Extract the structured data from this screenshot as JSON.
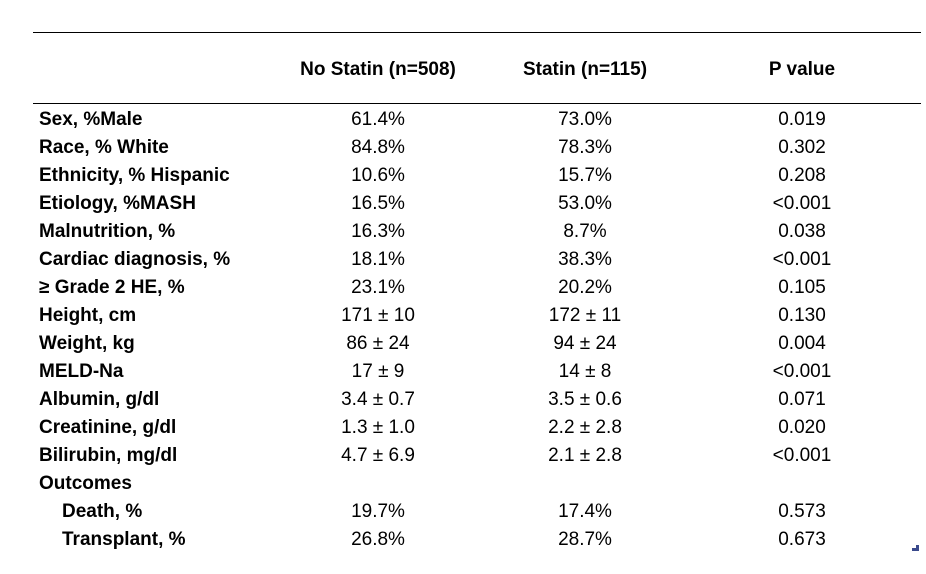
{
  "table": {
    "headers": [
      "No Statin (n=508)",
      "Statin (n=115)",
      "P value"
    ],
    "rows": [
      {
        "label": "Sex, %Male",
        "c1": "61.4%",
        "c2": "73.0%",
        "c3": "0.019"
      },
      {
        "label": "Race, % White",
        "c1": "84.8%",
        "c2": "78.3%",
        "c3": "0.302"
      },
      {
        "label": "Ethnicity, % Hispanic",
        "c1": "10.6%",
        "c2": "15.7%",
        "c3": "0.208"
      },
      {
        "label": "Etiology, %MASH",
        "c1": "16.5%",
        "c2": "53.0%",
        "c3": "<0.001"
      },
      {
        "label": "Malnutrition, %",
        "c1": "16.3%",
        "c2": "8.7%",
        "c3": "0.038"
      },
      {
        "label": "Cardiac diagnosis, %",
        "c1": "18.1%",
        "c2": "38.3%",
        "c3": "<0.001"
      },
      {
        "label": "≥ Grade 2 HE, %",
        "c1": "23.1%",
        "c2": "20.2%",
        "c3": "0.105"
      },
      {
        "label": "Height, cm",
        "c1": "171 ± 10",
        "c2": "172 ± 11",
        "c3": "0.130"
      },
      {
        "label": "Weight, kg",
        "c1": "86 ± 24",
        "c2": "94 ± 24",
        "c3": "0.004"
      },
      {
        "label": "MELD-Na",
        "c1": "17 ± 9",
        "c2": "14 ± 8",
        "c3": "<0.001"
      },
      {
        "label": "Albumin, g/dl",
        "c1": "3.4 ± 0.7",
        "c2": "3.5 ± 0.6",
        "c3": "0.071"
      },
      {
        "label": "Creatinine, g/dl",
        "c1": "1.3 ± 1.0",
        "c2": "2.2 ± 2.8",
        "c3": "0.020"
      },
      {
        "label": "Bilirubin, mg/dl",
        "c1": "4.7 ± 6.9",
        "c2": "2.1 ± 2.8",
        "c3": "<0.001"
      },
      {
        "label": "Outcomes",
        "c1": "",
        "c2": "",
        "c3": ""
      },
      {
        "label": "Death, %",
        "c1": "19.7%",
        "c2": "17.4%",
        "c3": "0.573",
        "indent": true
      },
      {
        "label": "Transplant, %",
        "c1": "26.8%",
        "c2": "28.7%",
        "c3": "0.673",
        "indent": true
      }
    ]
  },
  "colors": {
    "text": "#000000",
    "rule": "#000000",
    "background": "#ffffff",
    "corner_mark": "#3a4a8c"
  }
}
